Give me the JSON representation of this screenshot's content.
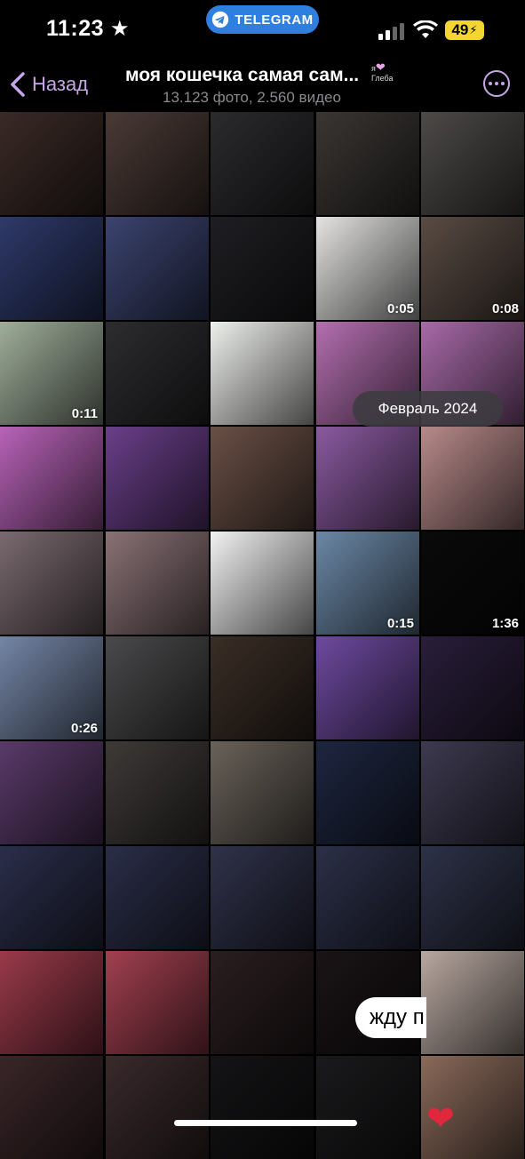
{
  "status_bar": {
    "time": "11:23",
    "star": "★",
    "pill_label": "TELEGRAM",
    "battery": "49"
  },
  "header": {
    "back_label": "Назад",
    "title": "моя кошечка самая сам...",
    "badge_line1": "я",
    "badge_heart": "❤",
    "badge_line2": "Глеба",
    "subtitle": "13.123 фото, 2.560 видео"
  },
  "date_badge": "Февраль 2024",
  "bubble_text": "жду п",
  "heart_emoji": "❤",
  "grid": {
    "rows": 10,
    "cols": 5,
    "cells": [
      {
        "r": 0,
        "c": 0,
        "bg": "#3a2a26"
      },
      {
        "r": 0,
        "c": 1,
        "bg": "#4a3a36"
      },
      {
        "r": 0,
        "c": 2,
        "bg": "#2b2b2e"
      },
      {
        "r": 0,
        "c": 3,
        "bg": "#3a3633"
      },
      {
        "r": 0,
        "c": 4,
        "bg": "#4d4a48"
      },
      {
        "r": 1,
        "c": 0,
        "bg": "#2e3a6a"
      },
      {
        "r": 1,
        "c": 1,
        "bg": "#3c4470"
      },
      {
        "r": 1,
        "c": 2,
        "bg": "#1f1e22"
      },
      {
        "r": 1,
        "c": 3,
        "bg": "#e4e3e2",
        "duration": "0:05"
      },
      {
        "r": 1,
        "c": 4,
        "bg": "#5a4c44",
        "duration": "0:08"
      },
      {
        "r": 2,
        "c": 0,
        "bg": "#9fae9a",
        "duration": "0:11"
      },
      {
        "r": 2,
        "c": 1,
        "bg": "#2d2d30"
      },
      {
        "r": 2,
        "c": 2,
        "bg": "#eef0ec"
      },
      {
        "r": 2,
        "c": 3,
        "bg": "#b46fb0"
      },
      {
        "r": 2,
        "c": 4,
        "bg": "#a86aa8"
      },
      {
        "r": 3,
        "c": 0,
        "bg": "#b863b8"
      },
      {
        "r": 3,
        "c": 1,
        "bg": "#6a3f8a"
      },
      {
        "r": 3,
        "c": 2,
        "bg": "#6a5046"
      },
      {
        "r": 3,
        "c": 3,
        "bg": "#8a5aa0"
      },
      {
        "r": 3,
        "c": 4,
        "bg": "#b88a8a"
      },
      {
        "r": 4,
        "c": 0,
        "bg": "#7a6a70"
      },
      {
        "r": 4,
        "c": 1,
        "bg": "#8a7276"
      },
      {
        "r": 4,
        "c": 2,
        "bg": "#f2f2f2"
      },
      {
        "r": 4,
        "c": 3,
        "bg": "#6b88a6",
        "duration": "0:15"
      },
      {
        "r": 4,
        "c": 4,
        "bg": "#0a0a0a",
        "duration": "1:36"
      },
      {
        "r": 5,
        "c": 0,
        "bg": "#7486a6",
        "duration": "0:26"
      },
      {
        "r": 5,
        "c": 1,
        "bg": "#4a4a4c"
      },
      {
        "r": 5,
        "c": 2,
        "bg": "#3a2e26"
      },
      {
        "r": 5,
        "c": 3,
        "bg": "#6e4aa0"
      },
      {
        "r": 5,
        "c": 4,
        "bg": "#2a1e3a"
      },
      {
        "r": 6,
        "c": 0,
        "bg": "#5a3a6a"
      },
      {
        "r": 6,
        "c": 1,
        "bg": "#3e3a38"
      },
      {
        "r": 6,
        "c": 2,
        "bg": "#6a625a"
      },
      {
        "r": 6,
        "c": 3,
        "bg": "#1e2640"
      },
      {
        "r": 6,
        "c": 4,
        "bg": "#3e3a50"
      },
      {
        "r": 7,
        "c": 0,
        "bg": "#2a2e4a"
      },
      {
        "r": 7,
        "c": 1,
        "bg": "#2a2e48"
      },
      {
        "r": 7,
        "c": 2,
        "bg": "#30324a"
      },
      {
        "r": 7,
        "c": 3,
        "bg": "#2c3048"
      },
      {
        "r": 7,
        "c": 4,
        "bg": "#2e3248"
      },
      {
        "r": 8,
        "c": 0,
        "bg": "#9a3a4a"
      },
      {
        "r": 8,
        "c": 1,
        "bg": "#a24050"
      },
      {
        "r": 8,
        "c": 2,
        "bg": "#2a1e20"
      },
      {
        "r": 8,
        "c": 3,
        "bg": "#1a1416"
      },
      {
        "r": 8,
        "c": 4,
        "bg": "#b8a8a0"
      },
      {
        "r": 9,
        "c": 0,
        "bg": "#3a2628"
      },
      {
        "r": 9,
        "c": 1,
        "bg": "#3a2a2c"
      },
      {
        "r": 9,
        "c": 2,
        "bg": "#141416"
      },
      {
        "r": 9,
        "c": 3,
        "bg": "#1a1a1c"
      },
      {
        "r": 9,
        "c": 4,
        "bg": "#8a6a5a"
      }
    ]
  }
}
